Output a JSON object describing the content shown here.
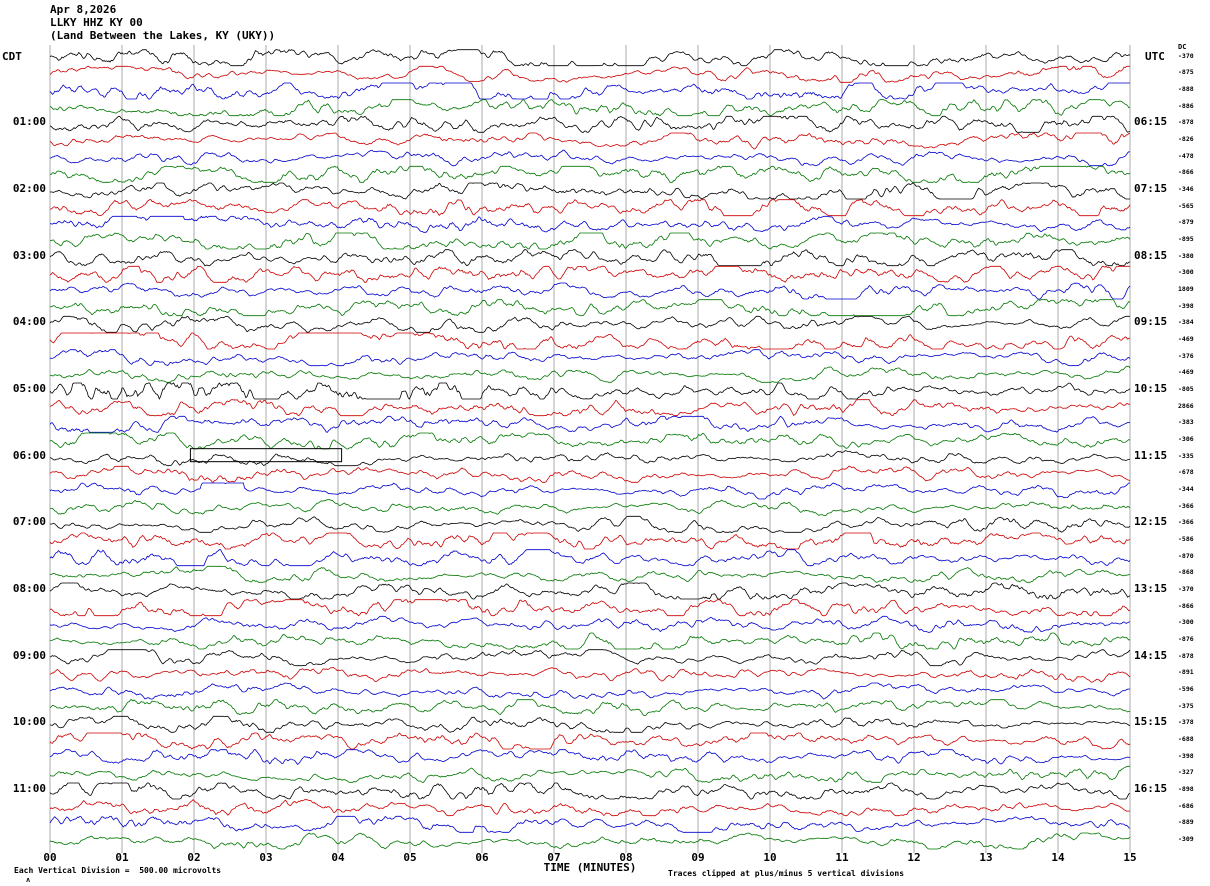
{
  "header": {
    "date": "Apr 8,2026",
    "station_line": "LLKY HHZ KY 00",
    "location_line": "(Land Between the Lakes, KY (UKY))"
  },
  "chart_data": {
    "type": "line",
    "subtype": "helicorder-seismogram",
    "title": "LLKY HHZ KY 00",
    "date": "Apr 8,2026",
    "location": "(Land Between the Lakes, KY (UKY))",
    "xlabel": "TIME (MINUTES)",
    "left_axis": "CDT",
    "right_axis": "UTC",
    "dc_header": "DC",
    "scale_note": "Each Vertical Division =  500.00 microvolts",
    "clip_note": "Traces clipped at plus/minus 5 vertical divisions",
    "caret_mark": "ʌ",
    "minutes_per_row": 15,
    "x_range_minutes": [
      0,
      15
    ],
    "x_ticks": [
      "00",
      "01",
      "02",
      "03",
      "04",
      "05",
      "06",
      "07",
      "08",
      "09",
      "10",
      "11",
      "12",
      "13",
      "14",
      "15"
    ],
    "division_microvolts": 500.0,
    "clip_divisions": 5,
    "trace_colors": [
      "#000000",
      "#cc0000",
      "#0000cc",
      "#007700"
    ],
    "waveform": {
      "description": "continuous seismic background-noise traces, one 15-minute row per line, colors cycling black/red/blue/green",
      "typical_amplitude_divisions": 1,
      "clip_divisions": 5
    },
    "events": [
      {
        "row": 20,
        "start_minute": 0.3,
        "end_minute": 6.0,
        "amplitude": 1.8
      },
      {
        "row": 26,
        "start_minute": 2.1,
        "end_minute": 2.7,
        "amplitude": 3.5
      }
    ],
    "calibration_pulse": {
      "row": 24,
      "start_minute": 1.95,
      "end_minute": 4.05
    },
    "rows": [
      {
        "cdt": "",
        "utc": "",
        "dc": "-370"
      },
      {
        "cdt": "",
        "utc": "",
        "dc": "-875"
      },
      {
        "cdt": "",
        "utc": "",
        "dc": "-888"
      },
      {
        "cdt": "",
        "utc": "",
        "dc": "-886"
      },
      {
        "cdt": "01:00",
        "utc": "06:15",
        "dc": "-878"
      },
      {
        "cdt": "",
        "utc": "",
        "dc": "-826"
      },
      {
        "cdt": "",
        "utc": "",
        "dc": "-478"
      },
      {
        "cdt": "",
        "utc": "",
        "dc": "-866"
      },
      {
        "cdt": "02:00",
        "utc": "07:15",
        "dc": "-346"
      },
      {
        "cdt": "",
        "utc": "",
        "dc": "-565"
      },
      {
        "cdt": "",
        "utc": "",
        "dc": "-879"
      },
      {
        "cdt": "",
        "utc": "",
        "dc": "-895"
      },
      {
        "cdt": "03:00",
        "utc": "08:15",
        "dc": "-380"
      },
      {
        "cdt": "",
        "utc": "",
        "dc": "-300"
      },
      {
        "cdt": "",
        "utc": "",
        "dc": "1809"
      },
      {
        "cdt": "",
        "utc": "",
        "dc": "-398"
      },
      {
        "cdt": "04:00",
        "utc": "09:15",
        "dc": "-384"
      },
      {
        "cdt": "",
        "utc": "",
        "dc": "-469"
      },
      {
        "cdt": "",
        "utc": "",
        "dc": "-376"
      },
      {
        "cdt": "",
        "utc": "",
        "dc": "-469"
      },
      {
        "cdt": "05:00",
        "utc": "10:15",
        "dc": "-805"
      },
      {
        "cdt": "",
        "utc": "",
        "dc": "2866"
      },
      {
        "cdt": "",
        "utc": "",
        "dc": "-383"
      },
      {
        "cdt": "",
        "utc": "",
        "dc": "-306"
      },
      {
        "cdt": "06:00",
        "utc": "11:15",
        "dc": "-335"
      },
      {
        "cdt": "",
        "utc": "",
        "dc": "-678"
      },
      {
        "cdt": "",
        "utc": "",
        "dc": "-344"
      },
      {
        "cdt": "",
        "utc": "",
        "dc": "-366"
      },
      {
        "cdt": "07:00",
        "utc": "12:15",
        "dc": "-366"
      },
      {
        "cdt": "",
        "utc": "",
        "dc": "-586"
      },
      {
        "cdt": "",
        "utc": "",
        "dc": "-870"
      },
      {
        "cdt": "",
        "utc": "",
        "dc": "-868"
      },
      {
        "cdt": "08:00",
        "utc": "13:15",
        "dc": "-370"
      },
      {
        "cdt": "",
        "utc": "",
        "dc": "-866"
      },
      {
        "cdt": "",
        "utc": "",
        "dc": "-300"
      },
      {
        "cdt": "",
        "utc": "",
        "dc": "-876"
      },
      {
        "cdt": "09:00",
        "utc": "14:15",
        "dc": "-878"
      },
      {
        "cdt": "",
        "utc": "",
        "dc": "-891"
      },
      {
        "cdt": "",
        "utc": "",
        "dc": "-596"
      },
      {
        "cdt": "",
        "utc": "",
        "dc": "-375"
      },
      {
        "cdt": "10:00",
        "utc": "15:15",
        "dc": "-378"
      },
      {
        "cdt": "",
        "utc": "",
        "dc": "-688"
      },
      {
        "cdt": "",
        "utc": "",
        "dc": "-398"
      },
      {
        "cdt": "",
        "utc": "",
        "dc": "-327"
      },
      {
        "cdt": "11:00",
        "utc": "16:15",
        "dc": "-898"
      },
      {
        "cdt": "",
        "utc": "",
        "dc": "-686"
      },
      {
        "cdt": "",
        "utc": "",
        "dc": "-889"
      },
      {
        "cdt": "",
        "utc": "",
        "dc": "-309"
      }
    ]
  }
}
